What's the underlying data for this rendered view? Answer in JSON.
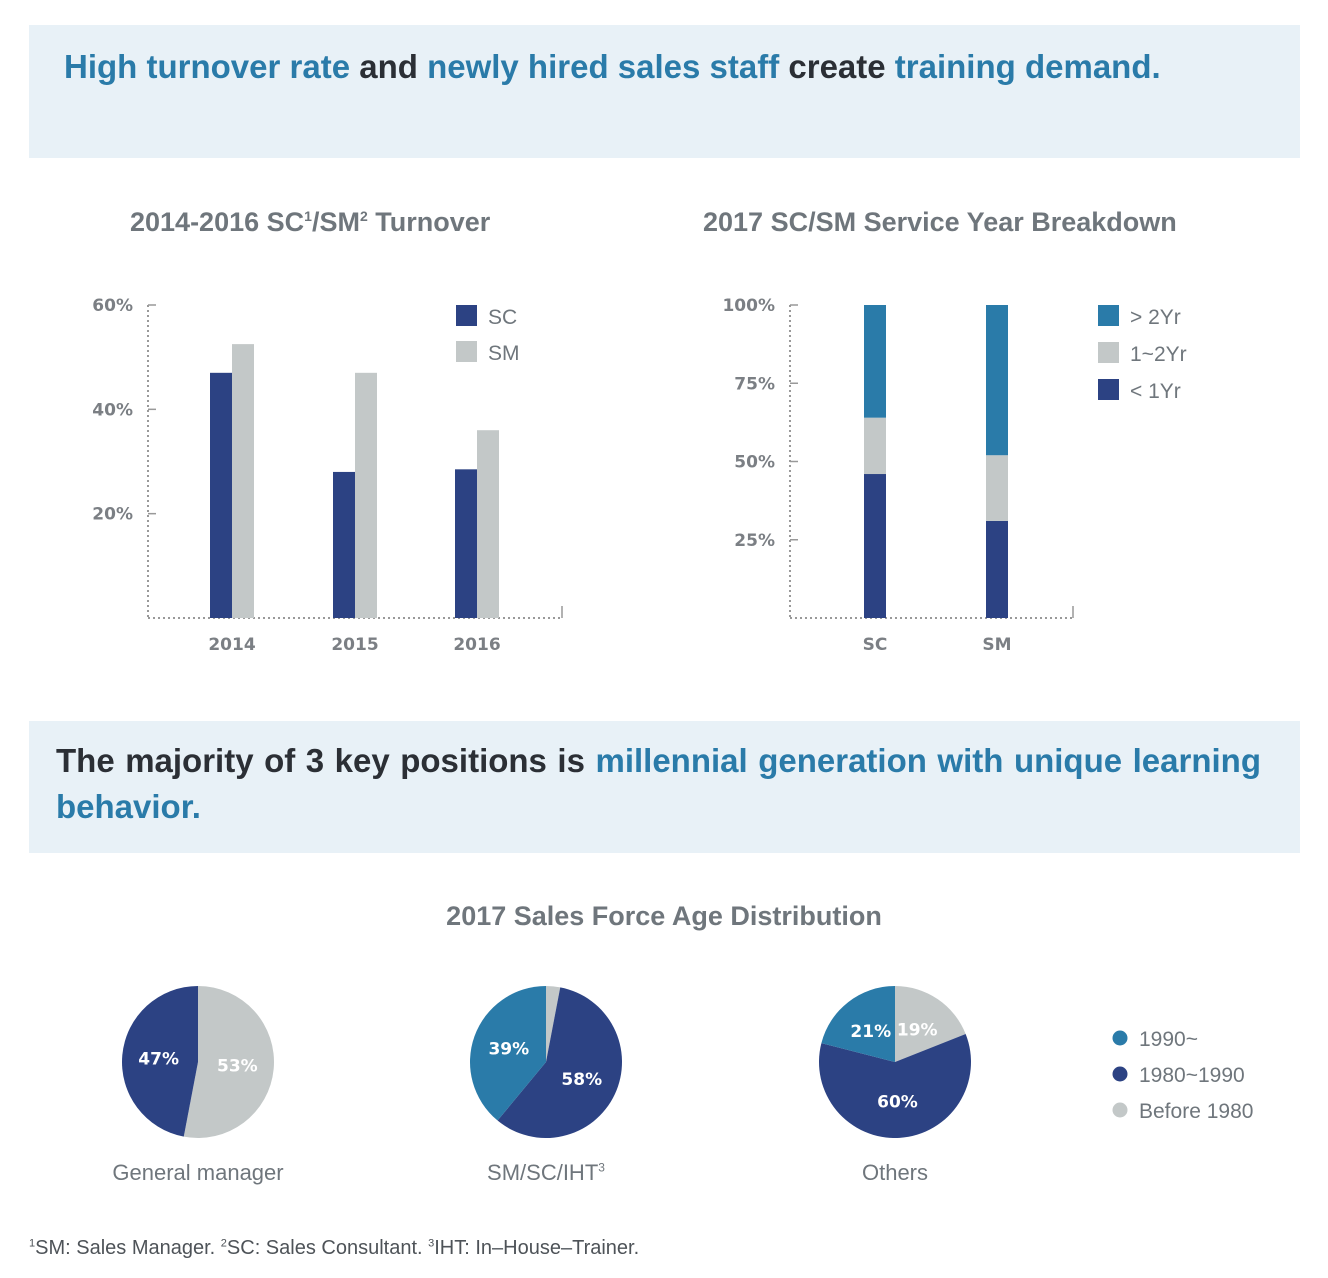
{
  "banner1": {
    "parts": [
      {
        "text": "High turnover rate",
        "hl": true
      },
      {
        "text": " and ",
        "hl": false
      },
      {
        "text": "newly hired sales staff",
        "hl": true
      },
      {
        "text": " create ",
        "hl": false
      },
      {
        "text": "training demand.",
        "hl": true
      }
    ]
  },
  "banner2": {
    "parts": [
      {
        "text": "The majority of 3 key positions is ",
        "hl": false
      },
      {
        "text": "millennial generation with unique learning behavior.",
        "hl": true
      }
    ]
  },
  "colors": {
    "navy": "#2c4283",
    "teal": "#2a7ba9",
    "grey": "#c3c8c8",
    "title": "#6f767c",
    "banner_bg": "#e8f1f7"
  },
  "titles": {
    "turnover_a": "2014-2016 SC",
    "turnover_sup1": "1",
    "turnover_b": "/SM",
    "turnover_sup2": "2",
    "turnover_c": " Turnover",
    "service": "2017 SC/SM Service Year Breakdown",
    "age": "2017 Sales Force Age Distribution"
  },
  "chart_data": [
    {
      "type": "bar",
      "title": "2014-2016 SC¹/SM² Turnover",
      "categories": [
        "2014",
        "2015",
        "2016"
      ],
      "series": [
        {
          "name": "SC",
          "values": [
            47,
            28,
            28.5
          ],
          "color": "#2c4283"
        },
        {
          "name": "SM",
          "values": [
            52.5,
            47,
            36
          ],
          "color": "#c3c8c8"
        }
      ],
      "yticks": [
        20,
        40,
        60
      ],
      "ytick_labels": [
        "20%",
        "40%",
        "60%"
      ],
      "ylim": [
        0,
        60
      ],
      "legend": "top-right",
      "grid": false
    },
    {
      "type": "bar",
      "stacked": true,
      "title": "2017 SC/SM Service Year Breakdown",
      "categories": [
        "SC",
        "SM"
      ],
      "series": [
        {
          "name": "< 1Yr",
          "values": [
            46,
            31
          ],
          "color": "#2c4283"
        },
        {
          "name": "1~2Yr",
          "values": [
            18,
            21
          ],
          "color": "#c3c8c8"
        },
        {
          "name": "> 2Yr",
          "values": [
            36,
            48
          ],
          "color": "#2a7ba9"
        }
      ],
      "yticks": [
        25,
        50,
        75,
        100
      ],
      "ytick_labels": [
        "25%",
        "50%",
        "75%",
        "100%"
      ],
      "ylim": [
        0,
        100
      ],
      "legend": "top-right",
      "grid": false
    },
    {
      "type": "pie",
      "title": "2017 Sales Force Age Distribution",
      "legend": [
        {
          "name": "1990~",
          "color": "#2a7ba9"
        },
        {
          "name": "1980~1990",
          "color": "#2c4283"
        },
        {
          "name": "Before 1980",
          "color": "#c3c8c8"
        }
      ],
      "pies": [
        {
          "name": "General manager",
          "name_sup": "",
          "slices": [
            {
              "series": "Before 1980",
              "value": 53,
              "label": "53%"
            },
            {
              "series": "1980~1990",
              "value": 47,
              "label": "47%"
            }
          ]
        },
        {
          "name": "SM/SC/IHT",
          "name_sup": "3",
          "slices": [
            {
              "series": "Before 1980",
              "value": 3,
              "label": ""
            },
            {
              "series": "1980~1990",
              "value": 58,
              "label": "58%"
            },
            {
              "series": "1990~",
              "value": 39,
              "label": "39%"
            }
          ]
        },
        {
          "name": "Others",
          "name_sup": "",
          "slices": [
            {
              "series": "Before 1980",
              "value": 19,
              "label": "19%"
            },
            {
              "series": "1980~1990",
              "value": 60,
              "label": "60%"
            },
            {
              "series": "1990~",
              "value": 21,
              "label": "21%"
            }
          ]
        }
      ]
    }
  ],
  "footnote": {
    "sup1": "1",
    "t1": "SM: Sales Manager. ",
    "sup2": "2",
    "t2": "SC: Sales Consultant. ",
    "sup3": "3",
    "t3": "IHT: In–House–Trainer."
  }
}
